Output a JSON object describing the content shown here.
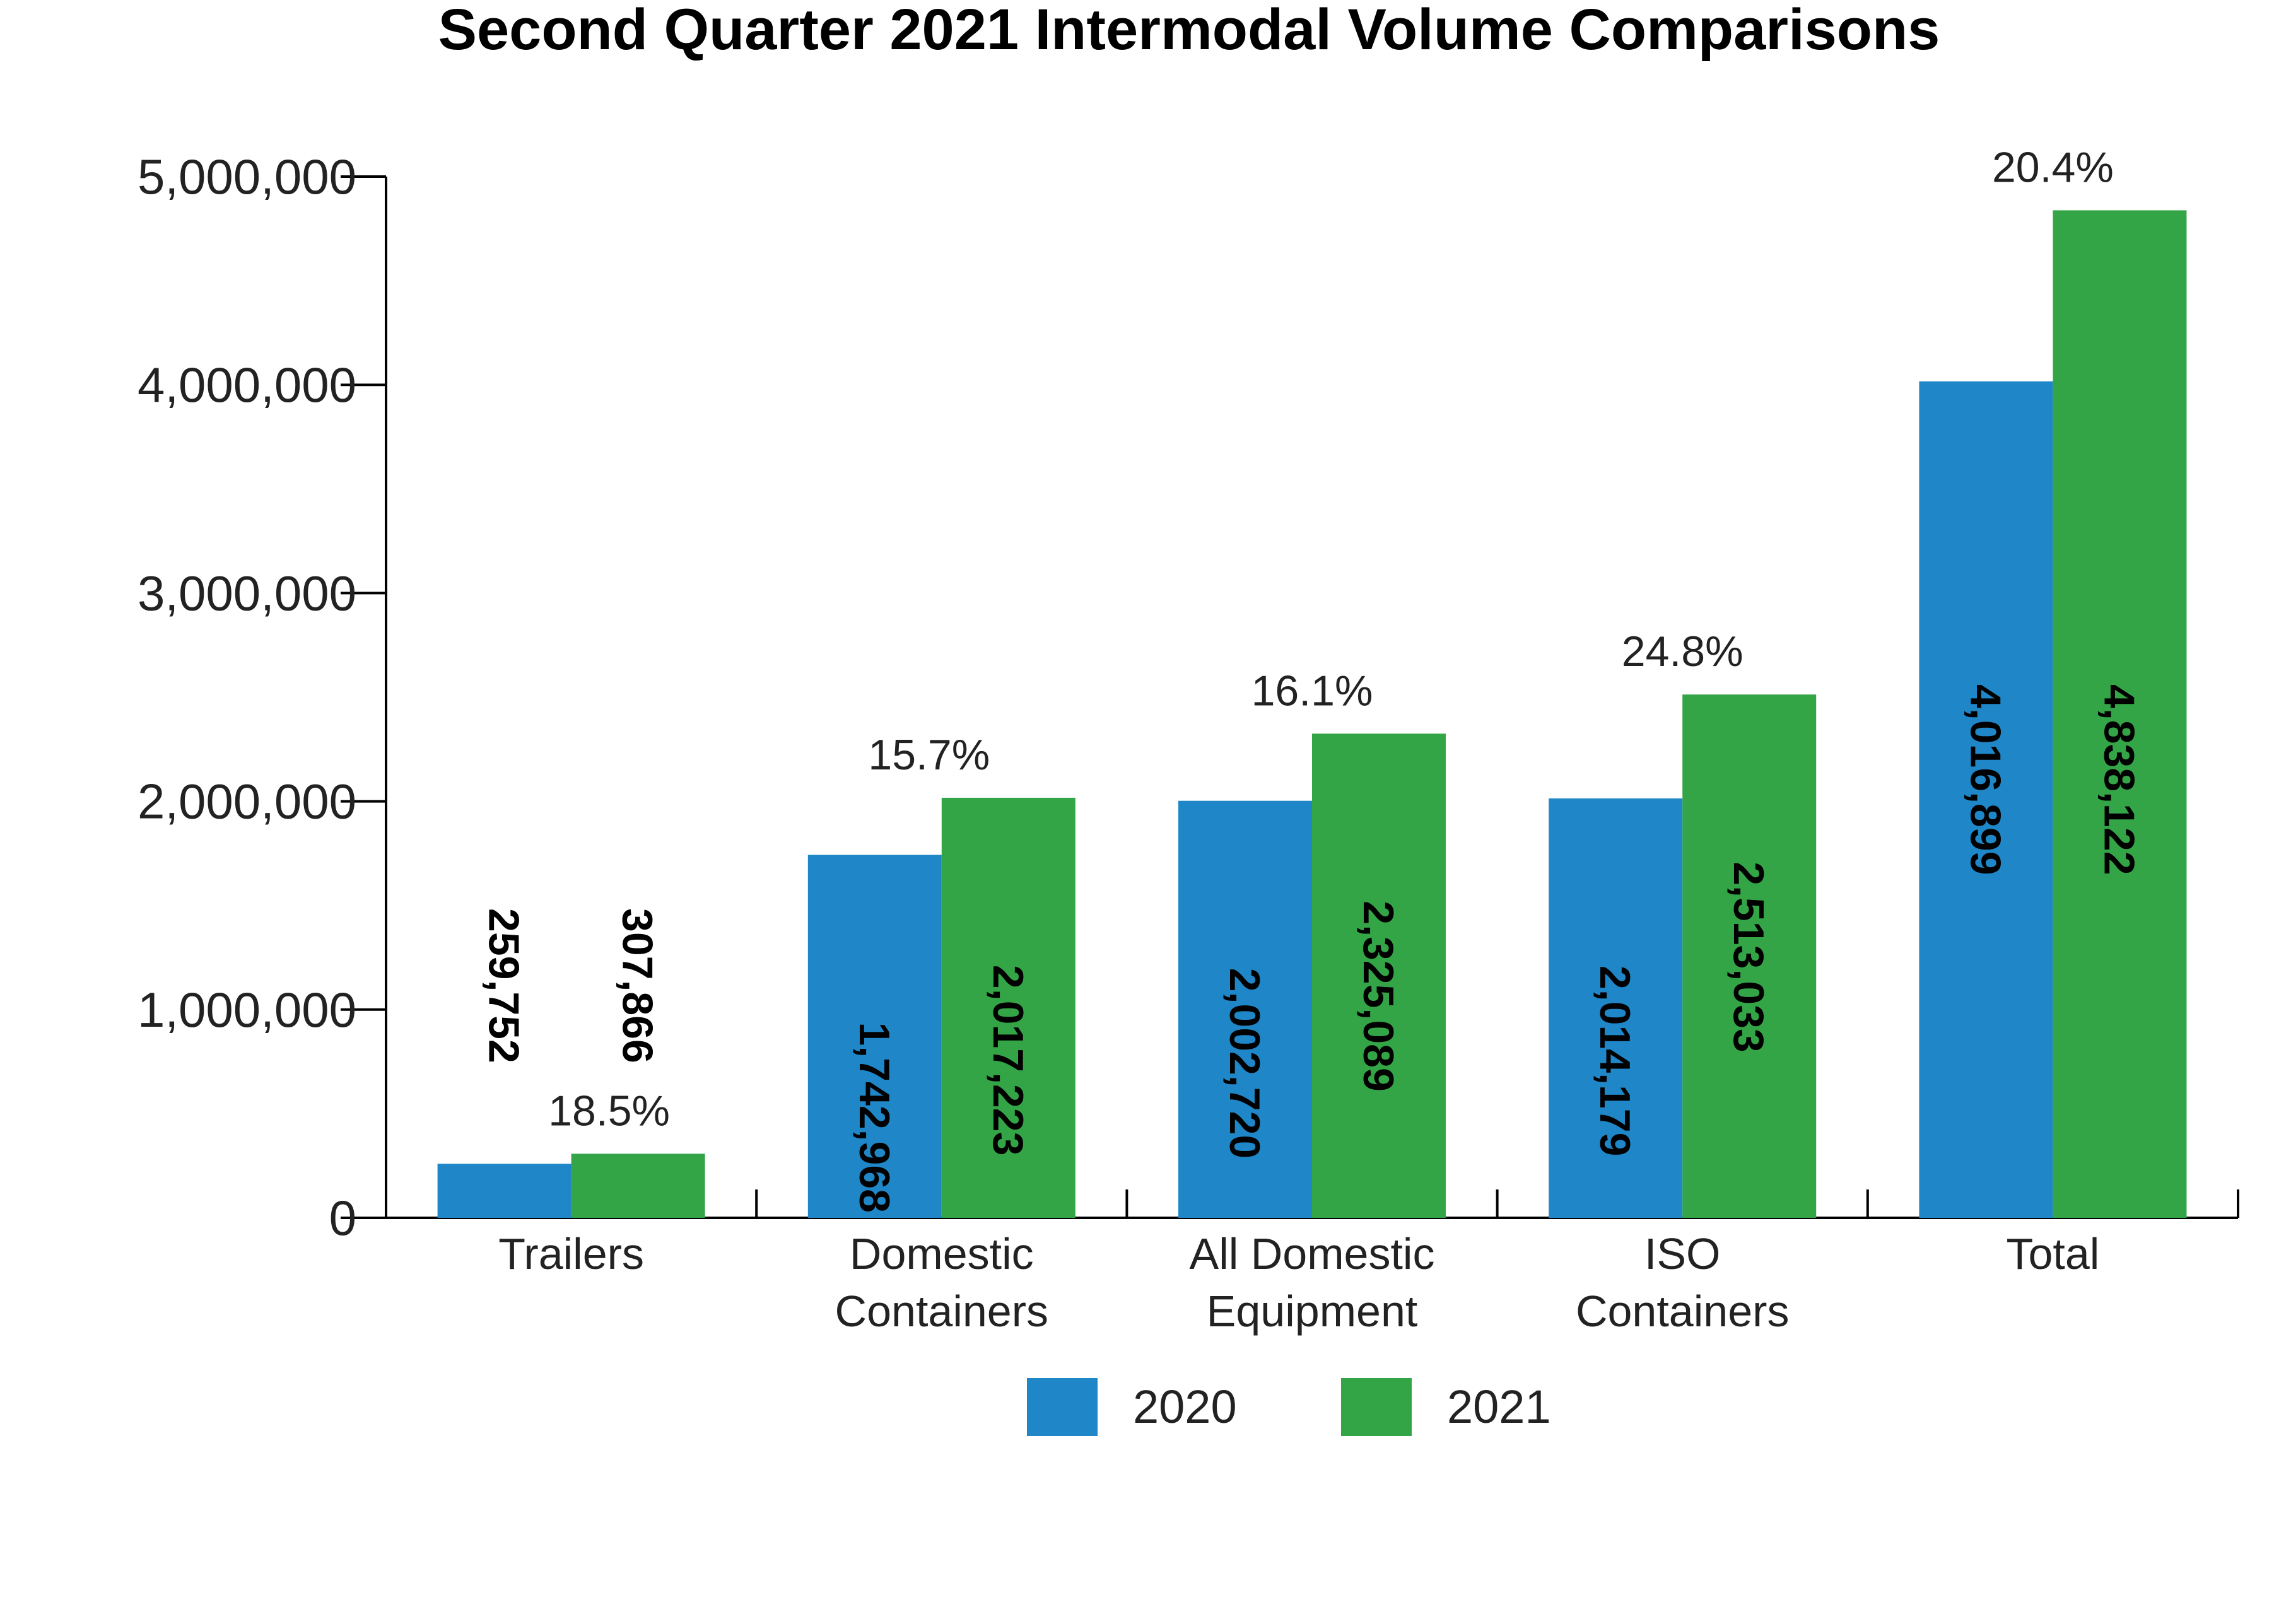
{
  "chart_data": {
    "type": "bar",
    "title": "Second Quarter 2021 Intermodal Volume Comparisons",
    "xlabel": "",
    "ylabel": "",
    "ylim": [
      0,
      5000000
    ],
    "y_ticks": [
      "0",
      "1,000,000",
      "2,000,000",
      "3,000,000",
      "4,000,000",
      "5,000,000"
    ],
    "y_tick_values": [
      0,
      1000000,
      2000000,
      3000000,
      4000000,
      5000000
    ],
    "categories": [
      [
        "Trailers"
      ],
      [
        "Domestic",
        "Containers"
      ],
      [
        "All Domestic",
        "Equipment"
      ],
      [
        "ISO",
        "Containers"
      ],
      [
        "Total"
      ]
    ],
    "series": [
      {
        "name": "2020",
        "color": "#1f87c8",
        "values": [
          259752,
          1742968,
          2002720,
          2014179,
          4016899
        ],
        "labels": [
          "259,752",
          "1,742,968",
          "2,002,720",
          "2,014,179",
          "4,016,899"
        ]
      },
      {
        "name": "2021",
        "color": "#34a547",
        "values": [
          307866,
          2017223,
          2325089,
          2513033,
          4838122
        ],
        "labels": [
          "307,866",
          "2,017,223",
          "2,325,089",
          "2,513,033",
          "4,838,122"
        ]
      }
    ],
    "pct_change": [
      "18.5%",
      "15.7%",
      "16.1%",
      "24.8%",
      "20.4%"
    ],
    "legend_position": "bottom",
    "grid": false
  }
}
